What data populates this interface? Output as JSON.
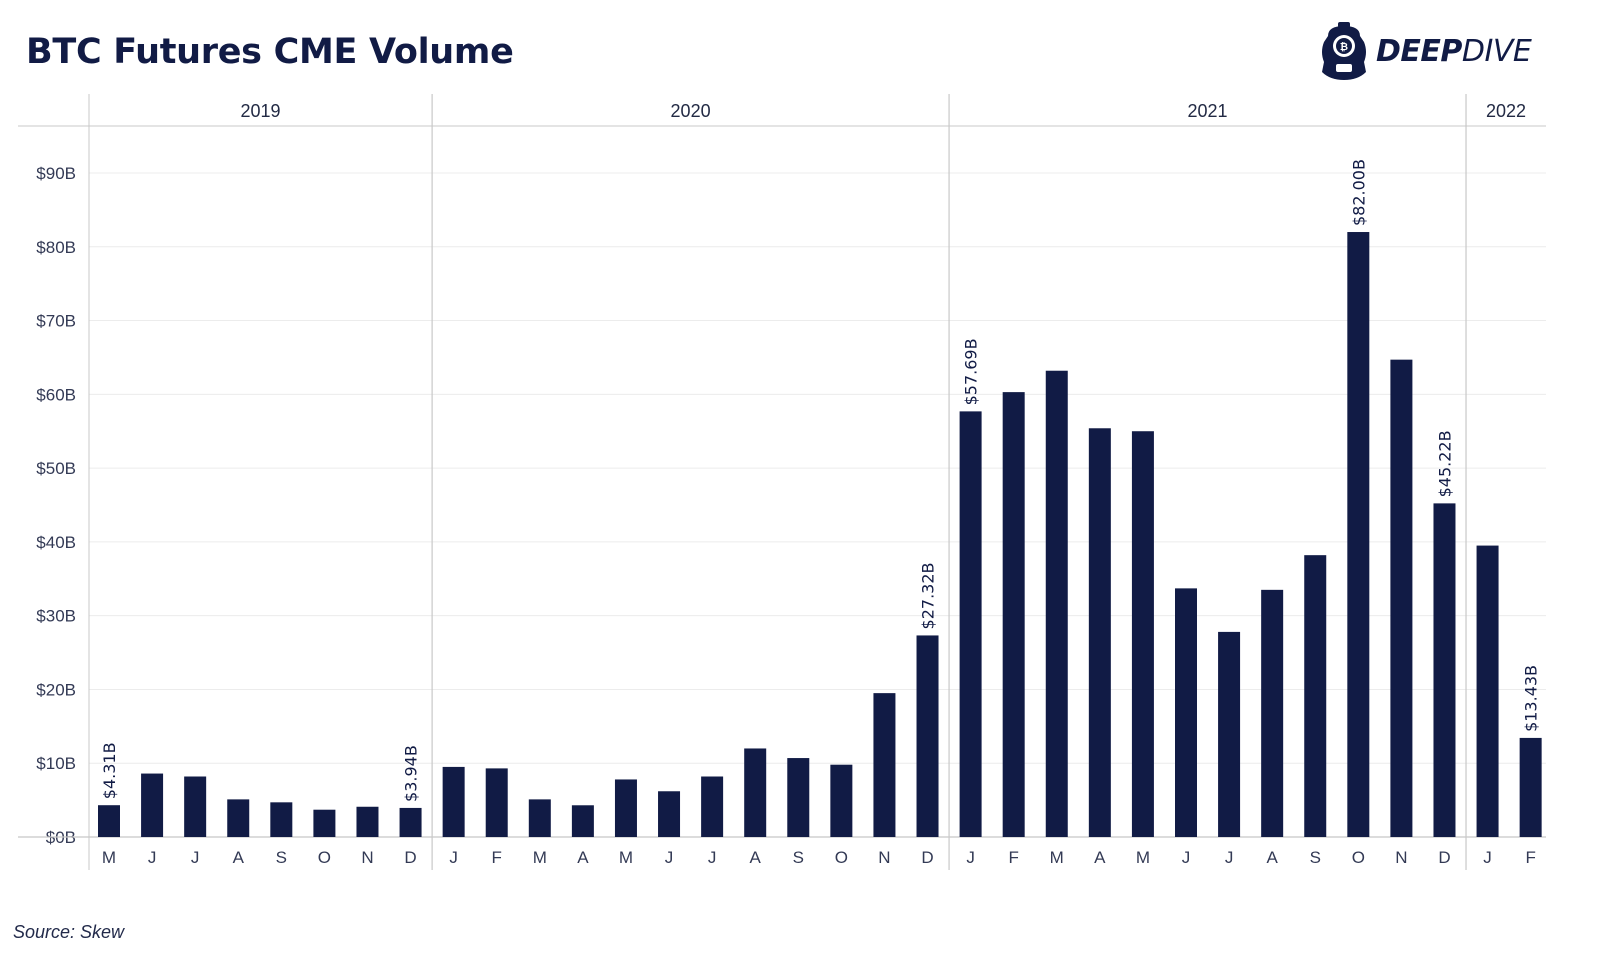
{
  "header": {
    "title": "BTC Futures CME Volume",
    "logo_text_bold": "DEEP",
    "logo_text_light": "DIVE"
  },
  "footer": {
    "source": "Source: Skew"
  },
  "colors": {
    "bar": "#111b45",
    "grid": "#ececec",
    "divider": "#c8c8c8",
    "text": "#111b45"
  },
  "chart_data": {
    "type": "bar",
    "title": "BTC Futures CME Volume",
    "xlabel": "",
    "ylabel": "",
    "ylim": [
      0,
      95
    ],
    "y_ticks": [
      "$0B",
      "$10B",
      "$20B",
      "$30B",
      "$40B",
      "$50B",
      "$60B",
      "$70B",
      "$80B",
      "$90B"
    ],
    "y_tick_values": [
      0,
      10,
      20,
      30,
      40,
      50,
      60,
      70,
      80,
      90
    ],
    "grid": true,
    "groups": [
      {
        "year": "2019",
        "months": [
          "M",
          "J",
          "J",
          "A",
          "S",
          "O",
          "N",
          "D"
        ]
      },
      {
        "year": "2020",
        "months": [
          "J",
          "F",
          "M",
          "A",
          "M",
          "J",
          "J",
          "A",
          "S",
          "O",
          "N",
          "D"
        ]
      },
      {
        "year": "2021",
        "months": [
          "J",
          "F",
          "M",
          "A",
          "M",
          "J",
          "J",
          "A",
          "S",
          "O",
          "N",
          "D"
        ]
      },
      {
        "year": "2022",
        "months": [
          "J",
          "F"
        ]
      }
    ],
    "values": [
      4.31,
      8.6,
      8.2,
      5.1,
      4.7,
      3.7,
      4.1,
      3.94,
      9.5,
      9.3,
      5.1,
      4.3,
      7.8,
      6.2,
      8.2,
      12.0,
      10.7,
      9.8,
      19.5,
      27.32,
      57.69,
      60.3,
      63.2,
      55.4,
      55.0,
      33.7,
      27.8,
      33.5,
      38.2,
      82.0,
      64.7,
      45.22,
      39.5,
      13.43
    ],
    "labels": {
      "0": "$4.31B",
      "7": "$3.94B",
      "19": "$27.32B",
      "20": "$57.69B",
      "29": "$82.00B",
      "31": "$45.22B",
      "33": "$13.43B"
    }
  }
}
